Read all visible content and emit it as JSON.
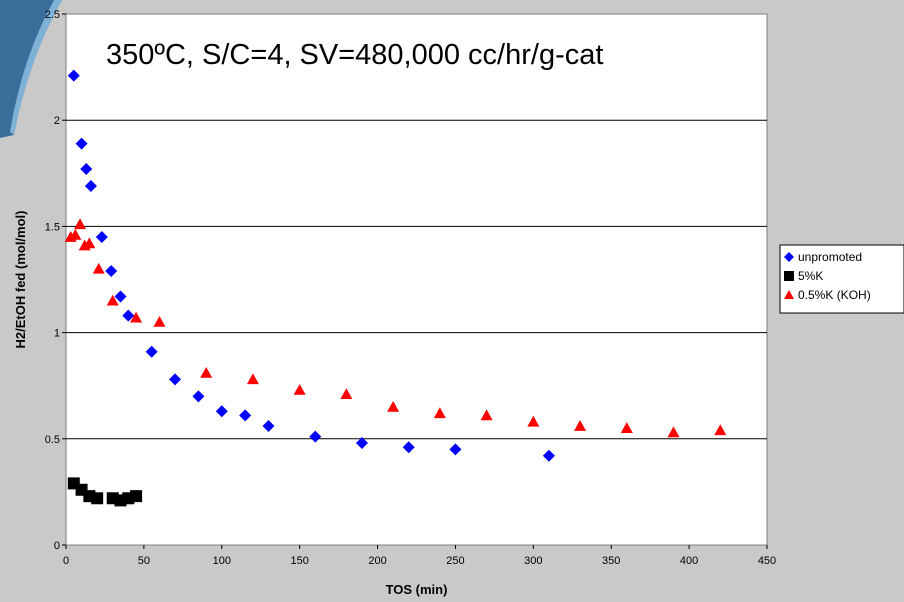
{
  "chart_data": {
    "type": "scatter",
    "title": "350ºC, S/C=4, SV=480,000 cc/hr/g-cat",
    "xlabel": "TOS (min)",
    "ylabel": "H2/EtOH fed (mol/mol)",
    "xlim": [
      0,
      450
    ],
    "ylim": [
      0,
      2.5
    ],
    "xticks": [
      "0",
      "50",
      "100",
      "150",
      "200",
      "250",
      "300",
      "350",
      "400",
      "450"
    ],
    "yticks": [
      "0",
      "0.5",
      "1",
      "1.5",
      "2",
      "2.5"
    ],
    "grid": "horizontal",
    "legend_position": "right",
    "series": [
      {
        "name": "unpromoted",
        "marker": "diamond",
        "color": "#0000ff",
        "x": [
          5,
          10,
          13,
          16,
          23,
          29,
          35,
          40,
          55,
          70,
          85,
          100,
          115,
          130,
          160,
          190,
          220,
          250,
          310
        ],
        "y": [
          2.21,
          1.89,
          1.77,
          1.69,
          1.45,
          1.29,
          1.17,
          1.08,
          0.91,
          0.78,
          0.7,
          0.63,
          0.61,
          0.56,
          0.51,
          0.48,
          0.46,
          0.45,
          0.42
        ]
      },
      {
        "name": "5%K",
        "marker": "square",
        "color": "#000000",
        "x": [
          5,
          10,
          15,
          20,
          30,
          35,
          40,
          45
        ],
        "y": [
          0.29,
          0.26,
          0.23,
          0.22,
          0.22,
          0.21,
          0.22,
          0.23
        ]
      },
      {
        "name": "0.5%K (KOH)",
        "marker": "triangle",
        "color": "#ff0000",
        "x": [
          3,
          6,
          9,
          12,
          15,
          21,
          30,
          45,
          60,
          90,
          120,
          150,
          180,
          210,
          240,
          270,
          300,
          330,
          360,
          390,
          420
        ],
        "y": [
          1.45,
          1.46,
          1.51,
          1.41,
          1.42,
          1.3,
          1.15,
          1.07,
          1.05,
          0.81,
          0.78,
          0.73,
          0.71,
          0.65,
          0.62,
          0.61,
          0.58,
          0.56,
          0.55,
          0.53,
          0.54
        ]
      }
    ]
  }
}
